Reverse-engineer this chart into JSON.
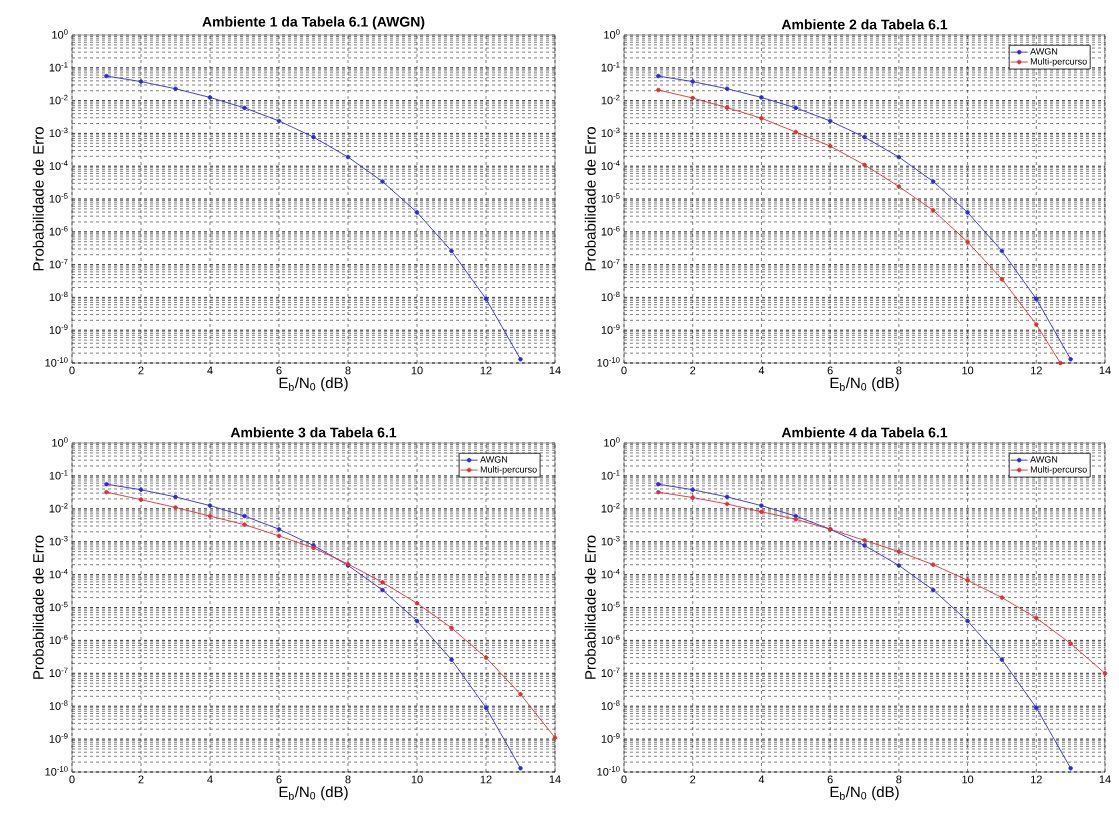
{
  "chart_data": [
    {
      "type": "line",
      "title": "Ambiente 1 da Tabela 6.1 (AWGN)",
      "xlabel": "E$_{b}$/N$_{0}$ (dB)",
      "ylabel": "Probabilidade de Erro",
      "log": true,
      "grid": true,
      "marker": "circle",
      "line_style": "solid",
      "xlim": [
        0,
        14
      ],
      "xticks": [
        0,
        2,
        4,
        6,
        8,
        10,
        12,
        14
      ],
      "ylim": [
        1e-10,
        1
      ],
      "yticks": [
        {
          "value": 1e-10,
          "label": "10$^{-10}$"
        },
        {
          "value": 1e-09,
          "label": "10$^{-9}$"
        },
        {
          "value": 1e-08,
          "label": "10$^{-8}$"
        },
        {
          "value": 1e-07,
          "label": "10$^{-7}$"
        },
        {
          "value": 1e-06,
          "label": "10$^{-6}$"
        },
        {
          "value": 1e-05,
          "label": "10$^{-5}$"
        },
        {
          "value": 0.0001,
          "label": "10$^{-4}$"
        },
        {
          "value": 0.001,
          "label": "10$^{-3}$"
        },
        {
          "value": 0.01,
          "label": "10$^{-2}$"
        },
        {
          "value": 0.1,
          "label": "10$^{-1}$"
        },
        {
          "value": 1,
          "label": "10$^{0}$"
        }
      ],
      "series": [
        {
          "color": "#2b2bd9",
          "x": [
            1,
            2,
            3,
            4,
            5,
            6,
            7,
            8,
            9,
            10,
            11,
            12,
            13
          ],
          "values": [
            0.056,
            0.038,
            0.023,
            0.0125,
            0.006,
            0.0024,
            0.00077,
            0.00019,
            3.4e-05,
            3.9e-06,
            2.6e-07,
            9e-09,
            1.3e-10
          ]
        }
      ]
    },
    {
      "type": "line",
      "title": "Ambiente 2 da Tabela 6.1",
      "xlabel": "E$_{b}$/N$_{0}$ (dB)",
      "ylabel": "Probabilidade de Erro",
      "log": true,
      "grid": true,
      "marker": "circle",
      "line_style": "solid",
      "legend": "top right",
      "xlim": [
        0,
        14
      ],
      "xticks": [
        0,
        2,
        4,
        6,
        8,
        10,
        12,
        14
      ],
      "ylim": [
        1e-10,
        1
      ],
      "yticks": [
        {
          "value": 1e-10,
          "label": "10$^{-10}$"
        },
        {
          "value": 1e-09,
          "label": "10$^{-9}$"
        },
        {
          "value": 1e-08,
          "label": "10$^{-8}$"
        },
        {
          "value": 1e-07,
          "label": "10$^{-7}$"
        },
        {
          "value": 1e-06,
          "label": "10$^{-6}$"
        },
        {
          "value": 1e-05,
          "label": "10$^{-5}$"
        },
        {
          "value": 0.0001,
          "label": "10$^{-4}$"
        },
        {
          "value": 0.001,
          "label": "10$^{-3}$"
        },
        {
          "value": 0.01,
          "label": "10$^{-2}$"
        },
        {
          "value": 0.1,
          "label": "10$^{-1}$"
        },
        {
          "value": 1,
          "label": "10$^{0}$"
        }
      ],
      "series": [
        {
          "name": "AWGN",
          "color": "#2b2bd9",
          "x": [
            1,
            2,
            3,
            4,
            5,
            6,
            7,
            8,
            9,
            10,
            11,
            12,
            13
          ],
          "values": [
            0.056,
            0.038,
            0.023,
            0.0125,
            0.006,
            0.0024,
            0.00077,
            0.00019,
            3.4e-05,
            3.9e-06,
            2.6e-07,
            9e-09,
            1.3e-10
          ]
        },
        {
          "name": "Multi-percurso",
          "color": "#e03030",
          "x": [
            1,
            2,
            3,
            4,
            5,
            6,
            7,
            8,
            9,
            10,
            11,
            12,
            12.7
          ],
          "values": [
            0.021,
            0.012,
            0.0061,
            0.0029,
            0.0011,
            0.00041,
            0.00011,
            2.4e-05,
            4.5e-06,
            4.9e-07,
            3.6e-08,
            1.5e-09,
            1e-10
          ]
        }
      ]
    },
    {
      "type": "line",
      "title": "Ambiente 3 da Tabela 6.1",
      "xlabel": "E$_{b}$/N$_{0}$ (dB)",
      "ylabel": "Probabilidade de Erro",
      "log": true,
      "grid": true,
      "marker": "circle",
      "line_style": "solid",
      "legend": "top right",
      "xlim": [
        0,
        14
      ],
      "xticks": [
        0,
        2,
        4,
        6,
        8,
        10,
        12,
        14
      ],
      "ylim": [
        1e-10,
        1
      ],
      "yticks": [
        {
          "value": 1e-10,
          "label": "10$^{-10}$"
        },
        {
          "value": 1e-09,
          "label": "10$^{-9}$"
        },
        {
          "value": 1e-08,
          "label": "10$^{-8}$"
        },
        {
          "value": 1e-07,
          "label": "10$^{-7}$"
        },
        {
          "value": 1e-06,
          "label": "10$^{-6}$"
        },
        {
          "value": 1e-05,
          "label": "10$^{-5}$"
        },
        {
          "value": 0.0001,
          "label": "10$^{-4}$"
        },
        {
          "value": 0.001,
          "label": "10$^{-3}$"
        },
        {
          "value": 0.01,
          "label": "10$^{-2}$"
        },
        {
          "value": 0.1,
          "label": "10$^{-1}$"
        },
        {
          "value": 1,
          "label": "10$^{0}$"
        }
      ],
      "series": [
        {
          "name": "AWGN",
          "color": "#2b2bd9",
          "x": [
            1,
            2,
            3,
            4,
            5,
            6,
            7,
            8,
            9,
            10,
            11,
            12,
            13
          ],
          "values": [
            0.056,
            0.038,
            0.023,
            0.0125,
            0.006,
            0.0024,
            0.00077,
            0.00019,
            3.4e-05,
            3.9e-06,
            2.6e-07,
            9e-09,
            1.3e-10
          ]
        },
        {
          "name": "Multi-percurso",
          "color": "#e03030",
          "x": [
            1,
            2,
            3,
            4,
            5,
            6,
            7,
            8,
            9,
            10,
            11,
            12,
            13,
            14
          ],
          "values": [
            0.032,
            0.019,
            0.011,
            0.006,
            0.0033,
            0.0015,
            0.00065,
            0.00021,
            5.8e-05,
            1.35e-05,
            2.4e-06,
            3e-07,
            2.3e-08,
            1.1e-09
          ]
        }
      ]
    },
    {
      "type": "line",
      "title": "Ambiente 4 da Tabela 6.1",
      "xlabel": "E$_{b}$/N$_{0}$ (dB)",
      "ylabel": "Probabilidade de Erro",
      "log": true,
      "grid": true,
      "marker": "circle",
      "line_style": "solid",
      "legend": "top right",
      "xlim": [
        0,
        14
      ],
      "xticks": [
        0,
        2,
        4,
        6,
        8,
        10,
        12,
        14
      ],
      "ylim": [
        1e-10,
        1
      ],
      "yticks": [
        {
          "value": 1e-10,
          "label": "10$^{-10}$"
        },
        {
          "value": 1e-09,
          "label": "10$^{-9}$"
        },
        {
          "value": 1e-08,
          "label": "10$^{-8}$"
        },
        {
          "value": 1e-07,
          "label": "10$^{-7}$"
        },
        {
          "value": 1e-06,
          "label": "10$^{-6}$"
        },
        {
          "value": 1e-05,
          "label": "10$^{-5}$"
        },
        {
          "value": 0.0001,
          "label": "10$^{-4}$"
        },
        {
          "value": 0.001,
          "label": "10$^{-3}$"
        },
        {
          "value": 0.01,
          "label": "10$^{-2}$"
        },
        {
          "value": 0.1,
          "label": "10$^{-1}$"
        },
        {
          "value": 1,
          "label": "10$^{0}$"
        }
      ],
      "series": [
        {
          "name": "AWGN",
          "color": "#2b2bd9",
          "x": [
            1,
            2,
            3,
            4,
            5,
            6,
            7,
            8,
            9,
            10,
            11,
            12,
            13
          ],
          "values": [
            0.056,
            0.038,
            0.023,
            0.0125,
            0.006,
            0.0024,
            0.00077,
            0.00019,
            3.4e-05,
            3.9e-06,
            2.6e-07,
            9e-09,
            1.3e-10
          ]
        },
        {
          "name": "Multi-percurso",
          "color": "#e03030",
          "x": [
            1,
            2,
            3,
            4,
            5,
            6,
            7,
            8,
            9,
            10,
            11,
            12,
            13,
            14
          ],
          "values": [
            0.032,
            0.022,
            0.014,
            0.0081,
            0.0048,
            0.0024,
            0.0011,
            0.0005,
            0.0002,
            6.7e-05,
            2e-05,
            4.8e-06,
            8e-07,
            1e-07
          ]
        }
      ]
    }
  ]
}
